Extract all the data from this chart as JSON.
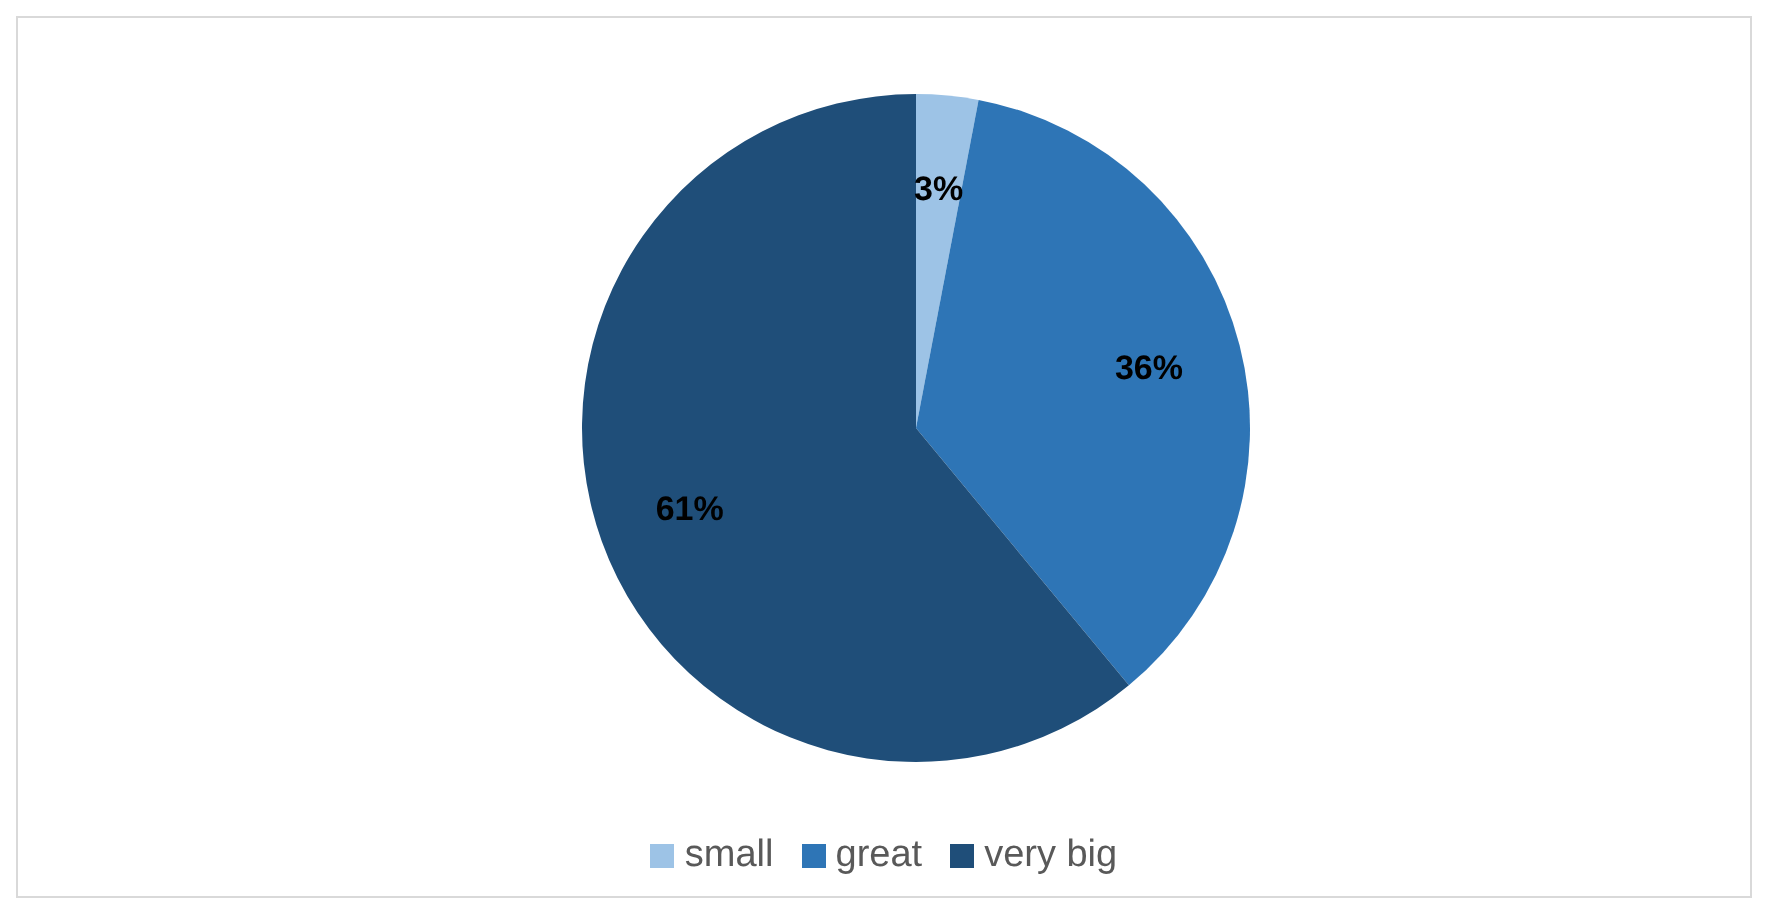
{
  "chart_data": {
    "type": "pie",
    "categories": [
      "small",
      "great",
      "very big"
    ],
    "values": [
      3,
      36,
      61
    ],
    "colors": [
      "#9dc3e6",
      "#2e75b6",
      "#1f4e79"
    ],
    "value_labels": [
      "3%",
      "36%",
      "61%"
    ],
    "legend": "bottom"
  }
}
